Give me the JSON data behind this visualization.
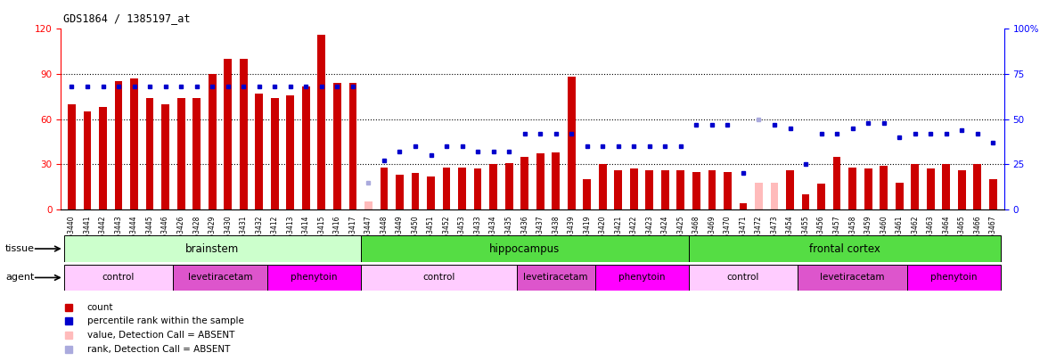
{
  "title": "GDS1864 / 1385197_at",
  "samples": [
    "GSM53440",
    "GSM53441",
    "GSM53442",
    "GSM53443",
    "GSM53444",
    "GSM53445",
    "GSM53446",
    "GSM53426",
    "GSM53428",
    "GSM53429",
    "GSM53430",
    "GSM53431",
    "GSM53432",
    "GSM53412",
    "GSM53413",
    "GSM53414",
    "GSM53415",
    "GSM53416",
    "GSM53417",
    "GSM53447",
    "GSM53448",
    "GSM53449",
    "GSM53450",
    "GSM53451",
    "GSM53452",
    "GSM53453",
    "GSM53433",
    "GSM53434",
    "GSM53435",
    "GSM53436",
    "GSM53437",
    "GSM53438",
    "GSM53439",
    "GSM53419",
    "GSM53420",
    "GSM53421",
    "GSM53422",
    "GSM53423",
    "GSM53424",
    "GSM53425",
    "GSM53468",
    "GSM53469",
    "GSM53470",
    "GSM53471",
    "GSM53472",
    "GSM53473",
    "GSM53454",
    "GSM53455",
    "GSM53456",
    "GSM53457",
    "GSM53458",
    "GSM53459",
    "GSM53460",
    "GSM53461",
    "GSM53462",
    "GSM53463",
    "GSM53464",
    "GSM53465",
    "GSM53466",
    "GSM53467"
  ],
  "counts": [
    70,
    65,
    68,
    85,
    87,
    74,
    70,
    74,
    74,
    90,
    100,
    100,
    77,
    74,
    76,
    82,
    116,
    84,
    84,
    5,
    28,
    23,
    24,
    22,
    28,
    28,
    27,
    30,
    31,
    35,
    37,
    38,
    88,
    20,
    30,
    26,
    27,
    26,
    26,
    26,
    25,
    26,
    25,
    4,
    18,
    18,
    26,
    10,
    17,
    35,
    28,
    27,
    29,
    18,
    30,
    27,
    30,
    26,
    30,
    20
  ],
  "percentile_ranks": [
    68,
    68,
    68,
    68,
    68,
    68,
    68,
    68,
    68,
    68,
    68,
    68,
    68,
    68,
    68,
    68,
    68,
    68,
    68,
    15,
    27,
    32,
    35,
    30,
    35,
    35,
    32,
    32,
    32,
    42,
    42,
    42,
    42,
    35,
    35,
    35,
    35,
    35,
    35,
    35,
    47,
    47,
    47,
    20,
    50,
    47,
    45,
    25,
    42,
    42,
    45,
    48,
    48,
    40,
    42,
    42,
    42,
    44,
    42,
    37
  ],
  "absent_count_indices": [
    19,
    44,
    45
  ],
  "absent_rank_indices": [
    19,
    44
  ],
  "tissue_groups": [
    {
      "label": "brainstem",
      "start": 0,
      "end": 19,
      "color": "#ccffcc"
    },
    {
      "label": "hippocampus",
      "start": 19,
      "end": 40,
      "color": "#66dd44"
    },
    {
      "label": "frontal cortex",
      "start": 40,
      "end": 60,
      "color": "#66dd44"
    }
  ],
  "agent_groups": [
    {
      "label": "control",
      "start": 0,
      "end": 7,
      "color": "#ffccff"
    },
    {
      "label": "levetiracetam",
      "start": 7,
      "end": 13,
      "color": "#dd55cc"
    },
    {
      "label": "phenytoin",
      "start": 13,
      "end": 19,
      "color": "#ff00ff"
    },
    {
      "label": "control",
      "start": 19,
      "end": 29,
      "color": "#ffccff"
    },
    {
      "label": "levetiracetam",
      "start": 29,
      "end": 34,
      "color": "#dd55cc"
    },
    {
      "label": "phenytoin",
      "start": 34,
      "end": 40,
      "color": "#ff00ff"
    },
    {
      "label": "control",
      "start": 40,
      "end": 47,
      "color": "#ffccff"
    },
    {
      "label": "levetiracetam",
      "start": 47,
      "end": 54,
      "color": "#dd55cc"
    },
    {
      "label": "phenytoin",
      "start": 54,
      "end": 60,
      "color": "#ff00ff"
    }
  ],
  "ylim_left": [
    0,
    120
  ],
  "ylim_right": [
    0,
    100
  ],
  "yticks_left": [
    0,
    30,
    60,
    90,
    120
  ],
  "yticks_right": [
    0,
    25,
    50,
    75,
    100
  ],
  "bar_color": "#cc0000",
  "absent_bar_color": "#ffbbbb",
  "dot_color": "#0000cc",
  "absent_dot_color": "#aaaadd"
}
